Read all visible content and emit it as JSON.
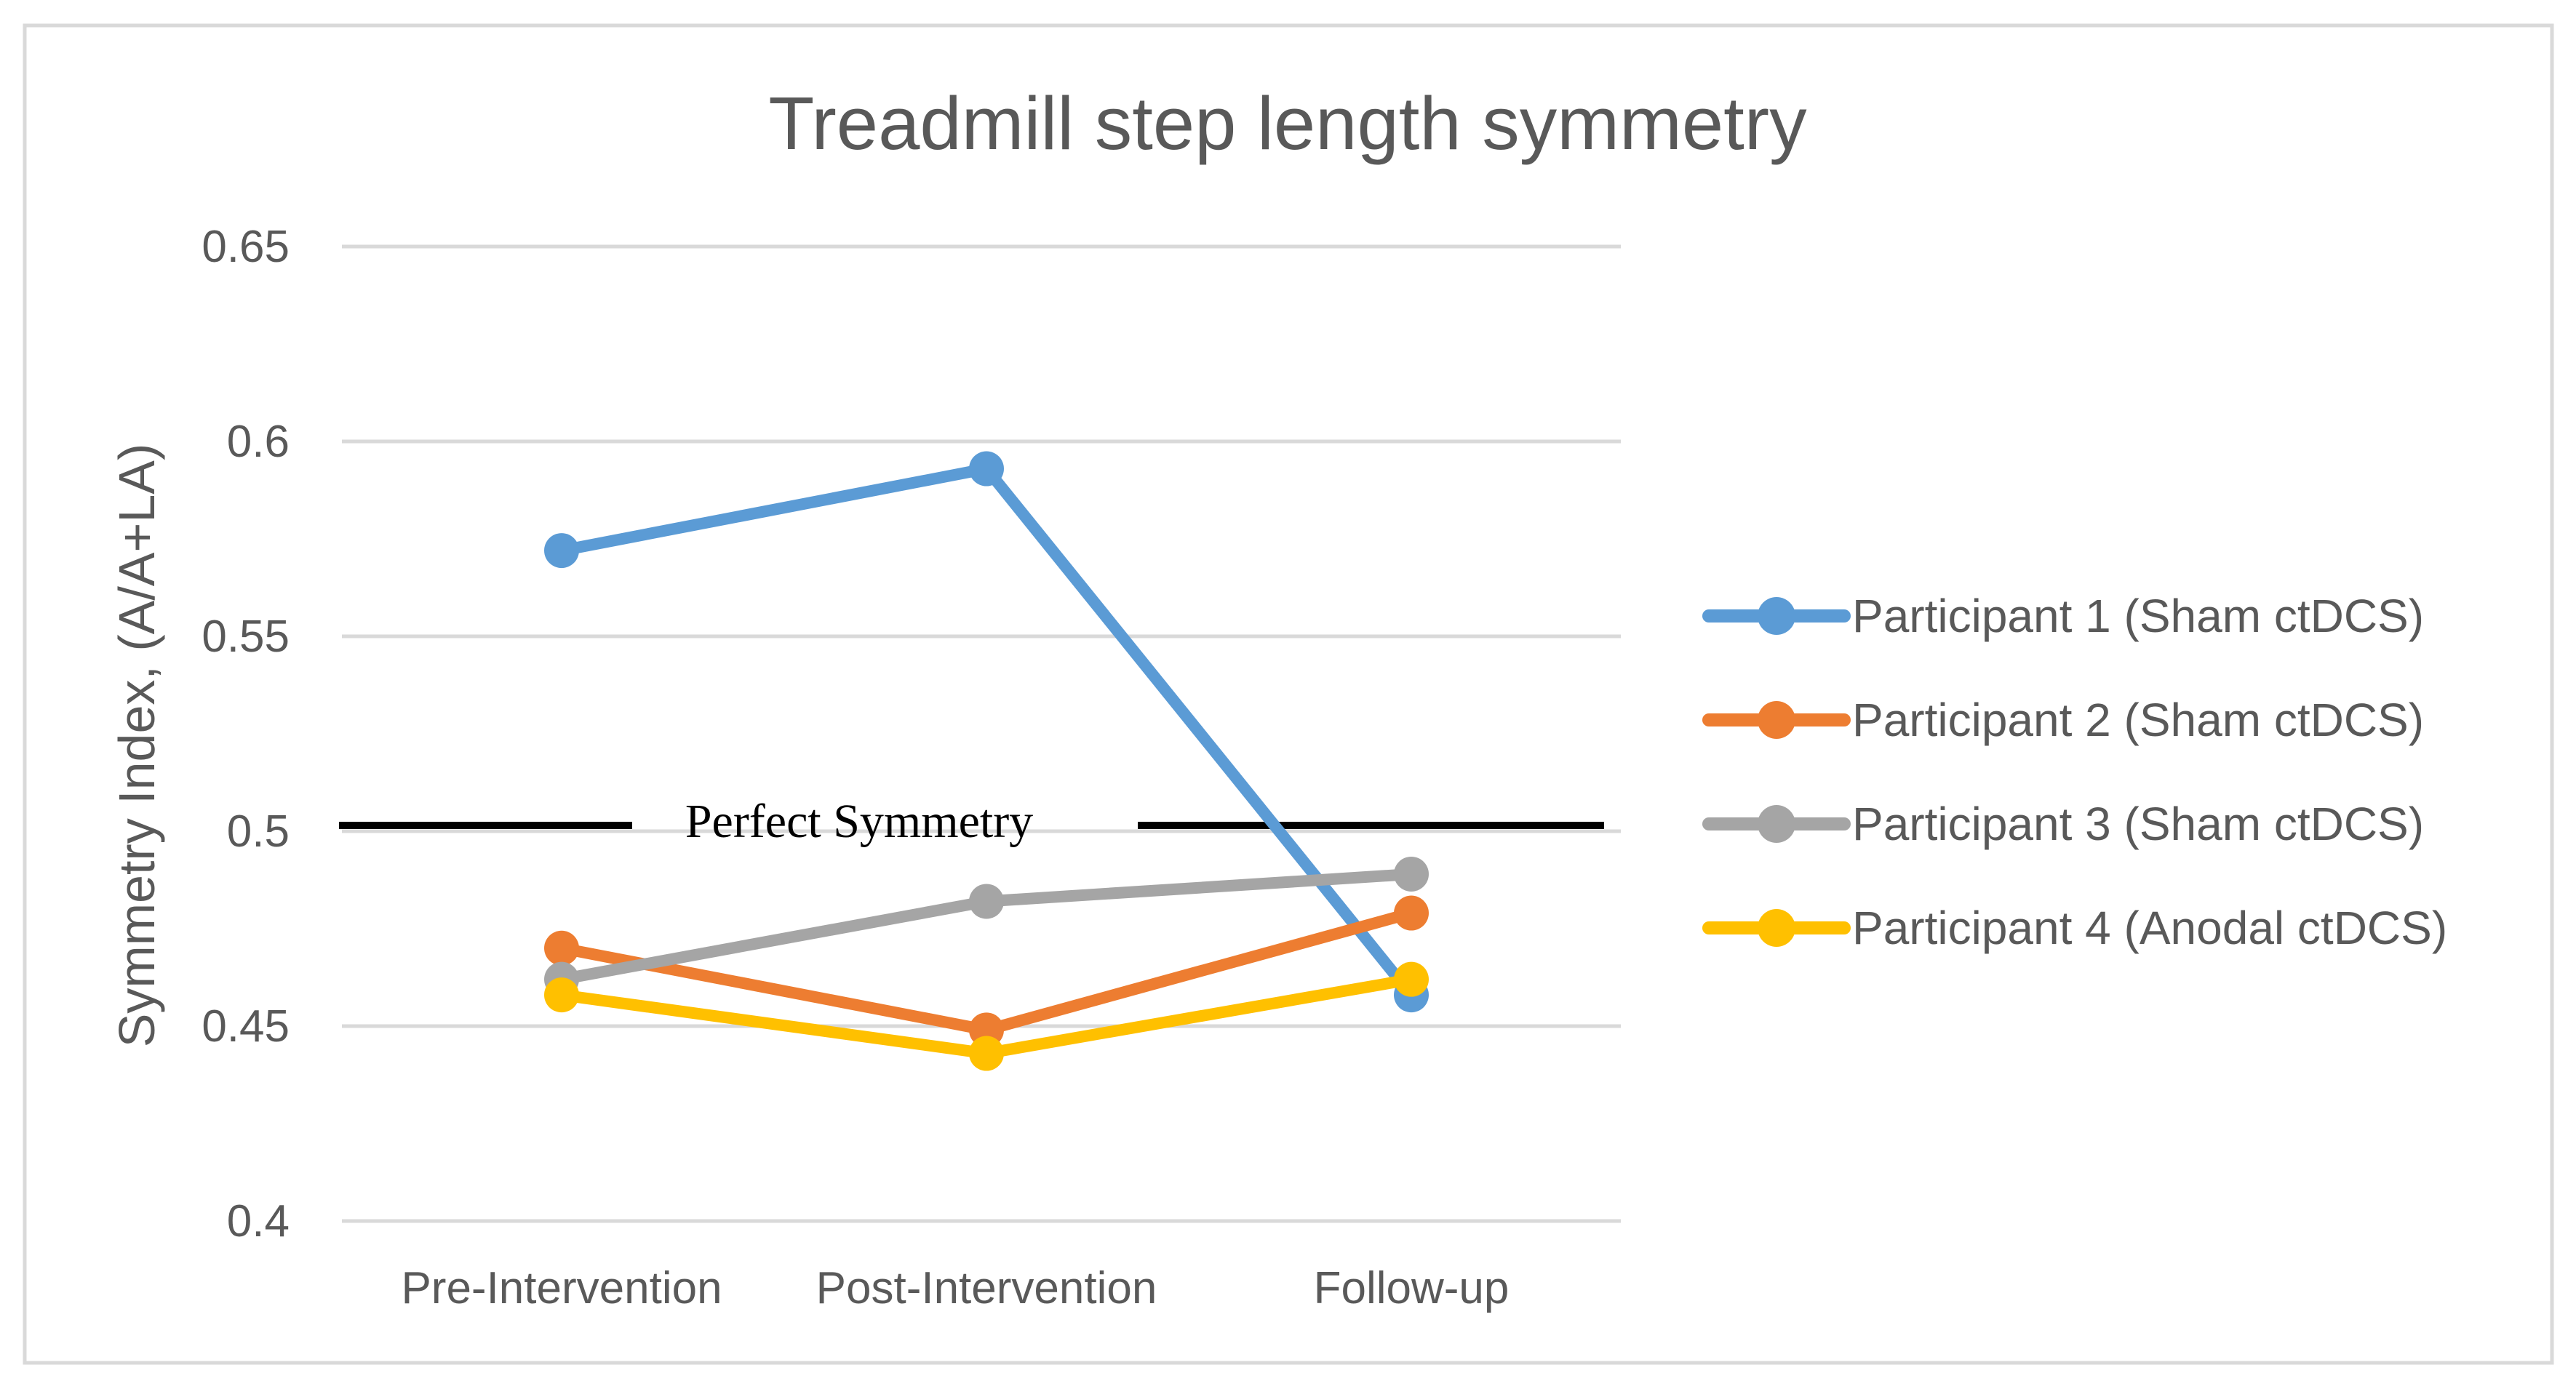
{
  "chart_data": {
    "type": "line",
    "title": "Treadmill step length symmetry",
    "ylabel": "Symmetry Index, (A/A+LA)",
    "xlabel": "",
    "categories": [
      "Pre-Intervention",
      "Post-Intervention",
      "Follow-up"
    ],
    "series": [
      {
        "name": "Participant 1 (Sham ctDCS)",
        "color": "#5B9BD5",
        "values": [
          0.572,
          0.593,
          0.458
        ]
      },
      {
        "name": "Participant 2 (Sham ctDCS)",
        "color": "#ED7D31",
        "values": [
          0.47,
          0.449,
          0.479
        ]
      },
      {
        "name": "Participant 3 (Sham ctDCS)",
        "color": "#A5A5A5",
        "values": [
          0.462,
          0.482,
          0.489
        ]
      },
      {
        "name": "Participant 4 (Anodal ctDCS)",
        "color": "#FFC000",
        "values": [
          0.458,
          0.443,
          0.462
        ]
      }
    ],
    "ylim": [
      0.4,
      0.65
    ],
    "yticks": [
      {
        "value": 0.65,
        "label": "0.65"
      },
      {
        "value": 0.6,
        "label": "0.6"
      },
      {
        "value": 0.55,
        "label": "0.55"
      },
      {
        "value": 0.5,
        "label": "0.5"
      },
      {
        "value": 0.45,
        "label": "0.45"
      },
      {
        "value": 0.4,
        "label": "0.4"
      }
    ],
    "grid": true,
    "legend_position": "right",
    "marker": "circle",
    "annotation": {
      "label": "Perfect Symmetry",
      "y": 0.5
    }
  },
  "colors": {
    "gridline": "#D9D9D9",
    "chart_border": "#D9D9D9",
    "text": "#595959",
    "annotation_line": "#000000",
    "background": "#FFFFFF"
  }
}
